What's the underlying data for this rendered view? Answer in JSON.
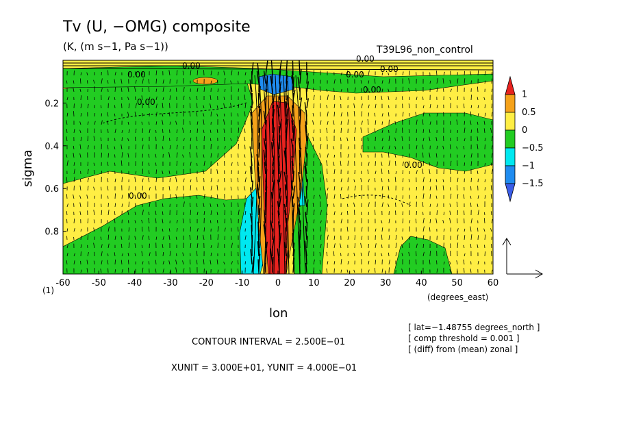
{
  "chart_data": {
    "type": "heatmap",
    "title": "Tv (U, −OMG) composite",
    "subtitle": "(K, (m s−1, Pa s−1))",
    "run_label": "T39L96_non_control",
    "xlabel": "lon",
    "xunit_label": "(degrees_east)",
    "ylabel": "sigma",
    "xlim": [
      -60,
      60
    ],
    "ylim": [
      1,
      0
    ],
    "xticks": [
      -60,
      -50,
      -40,
      -30,
      -20,
      -10,
      0,
      10,
      20,
      30,
      40,
      50,
      60
    ],
    "yticks": [
      0.2,
      0.4,
      0.6,
      0.8
    ],
    "bottom_ytick_label": "(1)",
    "colorbar": {
      "labels": [
        "1",
        "0.5",
        "0",
        "−0.5",
        "−1",
        "−1.5"
      ],
      "colors": [
        "#e8231f",
        "#f5a21a",
        "#ffee44",
        "#22cc22",
        "#00e8f0",
        "#1f8cf0",
        "#3a5de8"
      ]
    },
    "contour_labels": [
      "0.00",
      "0.00",
      "0.00",
      "0.00",
      "0.00",
      "0.00",
      "0.00",
      "0.00",
      "0.00"
    ],
    "info": {
      "lat": "[ lat=−1.48755 degrees_north ]",
      "threshold": "[ comp threshold = 0.001 ]",
      "diff": "[ (diff) from (mean) zonal ]"
    },
    "contour_interval": "CONTOUR INTERVAL = 2.500E−01",
    "units_text": "XUNIT = 3.000E+01, YUNIT = 4.000E−01"
  }
}
